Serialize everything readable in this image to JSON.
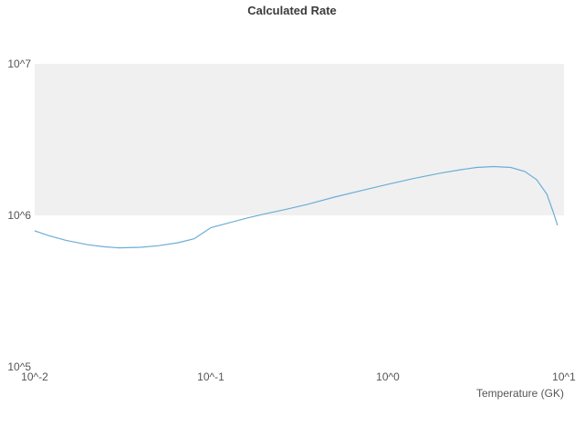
{
  "title": "Calculated Rate",
  "chart_data": {
    "type": "line",
    "title": "Calculated Rate",
    "xlabel": "Temperature (GK)",
    "ylabel": "",
    "x_scale": "log",
    "y_scale": "log",
    "xlim": [
      0.01,
      10
    ],
    "ylim": [
      100000,
      10000000
    ],
    "x_tick_labels": [
      "10^-2",
      "10^-1",
      "10^0",
      "10^1"
    ],
    "x_tick_values": [
      0.01,
      0.1,
      1,
      10
    ],
    "y_tick_labels": [
      "10^5",
      "10^6",
      "10^7"
    ],
    "y_tick_values": [
      100000,
      1000000,
      10000000
    ],
    "band_y_range": [
      1000000,
      10000000
    ],
    "grid": "band",
    "legend": "none",
    "series": [
      {
        "name": "Calculated Rate",
        "x": [
          0.01,
          0.012,
          0.015,
          0.02,
          0.025,
          0.03,
          0.04,
          0.05,
          0.065,
          0.08,
          0.1,
          0.13,
          0.16,
          0.2,
          0.26,
          0.35,
          0.5,
          0.7,
          1.0,
          1.4,
          2.0,
          2.6,
          3.2,
          4.0,
          5.0,
          6.0,
          7.0,
          8.0,
          8.7,
          9.2
        ],
        "y": [
          790000,
          735000,
          685000,
          640000,
          620000,
          610000,
          615000,
          630000,
          660000,
          700000,
          830000,
          900000,
          960000,
          1020000,
          1090000,
          1180000,
          1320000,
          1450000,
          1600000,
          1750000,
          1900000,
          2000000,
          2070000,
          2100000,
          2070000,
          1950000,
          1720000,
          1380000,
          1050000,
          860000
        ]
      }
    ],
    "colors": {
      "line": "#6baed6",
      "band_fill": "#f0f0f0",
      "title_text": "#3b3b3b",
      "tick_text": "#555555"
    }
  }
}
